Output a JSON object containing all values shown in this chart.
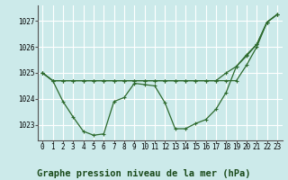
{
  "background_color": "#cceaea",
  "grid_color": "#ffffff",
  "line_color": "#2d6a2d",
  "title": "Graphe pression niveau de la mer (hPa)",
  "xlim": [
    -0.5,
    23.5
  ],
  "ylim": [
    1022.4,
    1027.6
  ],
  "yticks": [
    1023,
    1024,
    1025,
    1026,
    1027
  ],
  "xticks": [
    0,
    1,
    2,
    3,
    4,
    5,
    6,
    7,
    8,
    9,
    10,
    11,
    12,
    13,
    14,
    15,
    16,
    17,
    18,
    19,
    20,
    21,
    22,
    23
  ],
  "series": [
    [
      1025.0,
      1024.7,
      1023.9,
      1023.3,
      1022.75,
      1022.6,
      1022.65,
      1023.9,
      1024.05,
      1024.6,
      1024.55,
      1024.5,
      1023.85,
      1022.85,
      1022.85,
      1023.05,
      1023.2,
      1023.6,
      1024.25,
      1025.25,
      1025.7,
      1026.1,
      1026.95,
      1027.25
    ],
    [
      1025.0,
      1024.7,
      1024.7,
      1024.7,
      1024.7,
      1024.7,
      1024.7,
      1024.7,
      1024.7,
      1024.7,
      1024.7,
      1024.7,
      1024.7,
      1024.7,
      1024.7,
      1024.7,
      1024.7,
      1024.7,
      1024.7,
      1024.7,
      1025.3,
      1026.0,
      1026.95,
      1027.25
    ],
    [
      1025.0,
      1024.7,
      1024.7,
      1024.7,
      1024.7,
      1024.7,
      1024.7,
      1024.7,
      1024.7,
      1024.7,
      1024.7,
      1024.7,
      1024.7,
      1024.7,
      1024.7,
      1024.7,
      1024.7,
      1024.7,
      1025.0,
      1025.25,
      1025.65,
      1026.1,
      1026.95,
      1027.25
    ]
  ],
  "marker": "+",
  "markersize": 3.5,
  "linewidth": 0.9,
  "title_fontsize": 7.5,
  "tick_fontsize": 5.5,
  "title_color": "#1a4a1a"
}
